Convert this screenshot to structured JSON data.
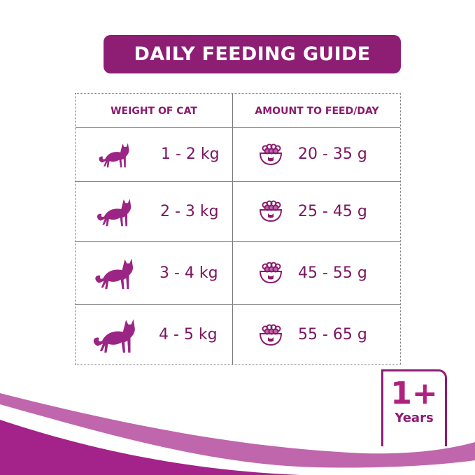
{
  "banner": {
    "title": "DAILY FEEDING GUIDE"
  },
  "table": {
    "headers": [
      "WEIGHT OF CAT",
      "AMOUNT TO FEED/DAY"
    ],
    "rows": [
      {
        "weight": "1 - 2 kg",
        "amount": "20 - 35 g"
      },
      {
        "weight": "2 - 3 kg",
        "amount": "25 - 45 g"
      },
      {
        "weight": "3 - 4 kg",
        "amount": "45 - 55 g"
      },
      {
        "weight": "4 - 5 kg",
        "amount": "55 - 65 g"
      }
    ]
  },
  "badge": {
    "age": "1+",
    "unit": "Years"
  },
  "colors": {
    "brand": "#8e1d74",
    "accent": "#b0207e",
    "light": "#c066ad"
  },
  "icons": {
    "cat": "cat-silhouette-icon",
    "bowl": "food-bowl-icon"
  }
}
